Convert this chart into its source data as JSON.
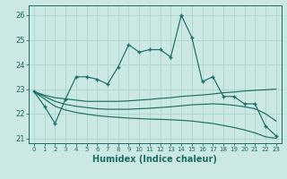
{
  "xlabel": "Humidex (Indice chaleur)",
  "background_color": "#cce8e4",
  "grid_color": "#b0d8d0",
  "line_color": "#1a6e64",
  "xlim": [
    -0.5,
    23.5
  ],
  "ylim": [
    20.8,
    26.4
  ],
  "yticks": [
    21,
    22,
    23,
    24,
    25,
    26
  ],
  "xticks": [
    0,
    1,
    2,
    3,
    4,
    5,
    6,
    7,
    8,
    9,
    10,
    11,
    12,
    13,
    14,
    15,
    16,
    17,
    18,
    19,
    20,
    21,
    22,
    23
  ],
  "main_line": [
    22.9,
    22.3,
    21.6,
    22.6,
    23.5,
    23.5,
    23.4,
    23.2,
    23.9,
    24.8,
    24.5,
    24.6,
    24.6,
    24.3,
    26.0,
    25.1,
    23.3,
    23.5,
    22.7,
    22.7,
    22.4,
    22.4,
    21.5,
    21.1
  ],
  "trend1": [
    22.9,
    22.75,
    22.65,
    22.6,
    22.55,
    22.5,
    22.5,
    22.5,
    22.5,
    22.52,
    22.55,
    22.58,
    22.62,
    22.65,
    22.7,
    22.73,
    22.76,
    22.8,
    22.85,
    22.88,
    22.92,
    22.95,
    22.97,
    23.0
  ],
  "trend2": [
    22.9,
    22.7,
    22.5,
    22.38,
    22.3,
    22.25,
    22.2,
    22.18,
    22.18,
    22.18,
    22.2,
    22.22,
    22.25,
    22.28,
    22.32,
    22.36,
    22.38,
    22.4,
    22.38,
    22.34,
    22.28,
    22.2,
    22.0,
    21.7
  ],
  "trend3": [
    22.9,
    22.6,
    22.3,
    22.15,
    22.05,
    21.98,
    21.92,
    21.88,
    21.85,
    21.82,
    21.8,
    21.78,
    21.77,
    21.75,
    21.73,
    21.7,
    21.65,
    21.6,
    21.52,
    21.44,
    21.34,
    21.22,
    21.06,
    21.0
  ]
}
